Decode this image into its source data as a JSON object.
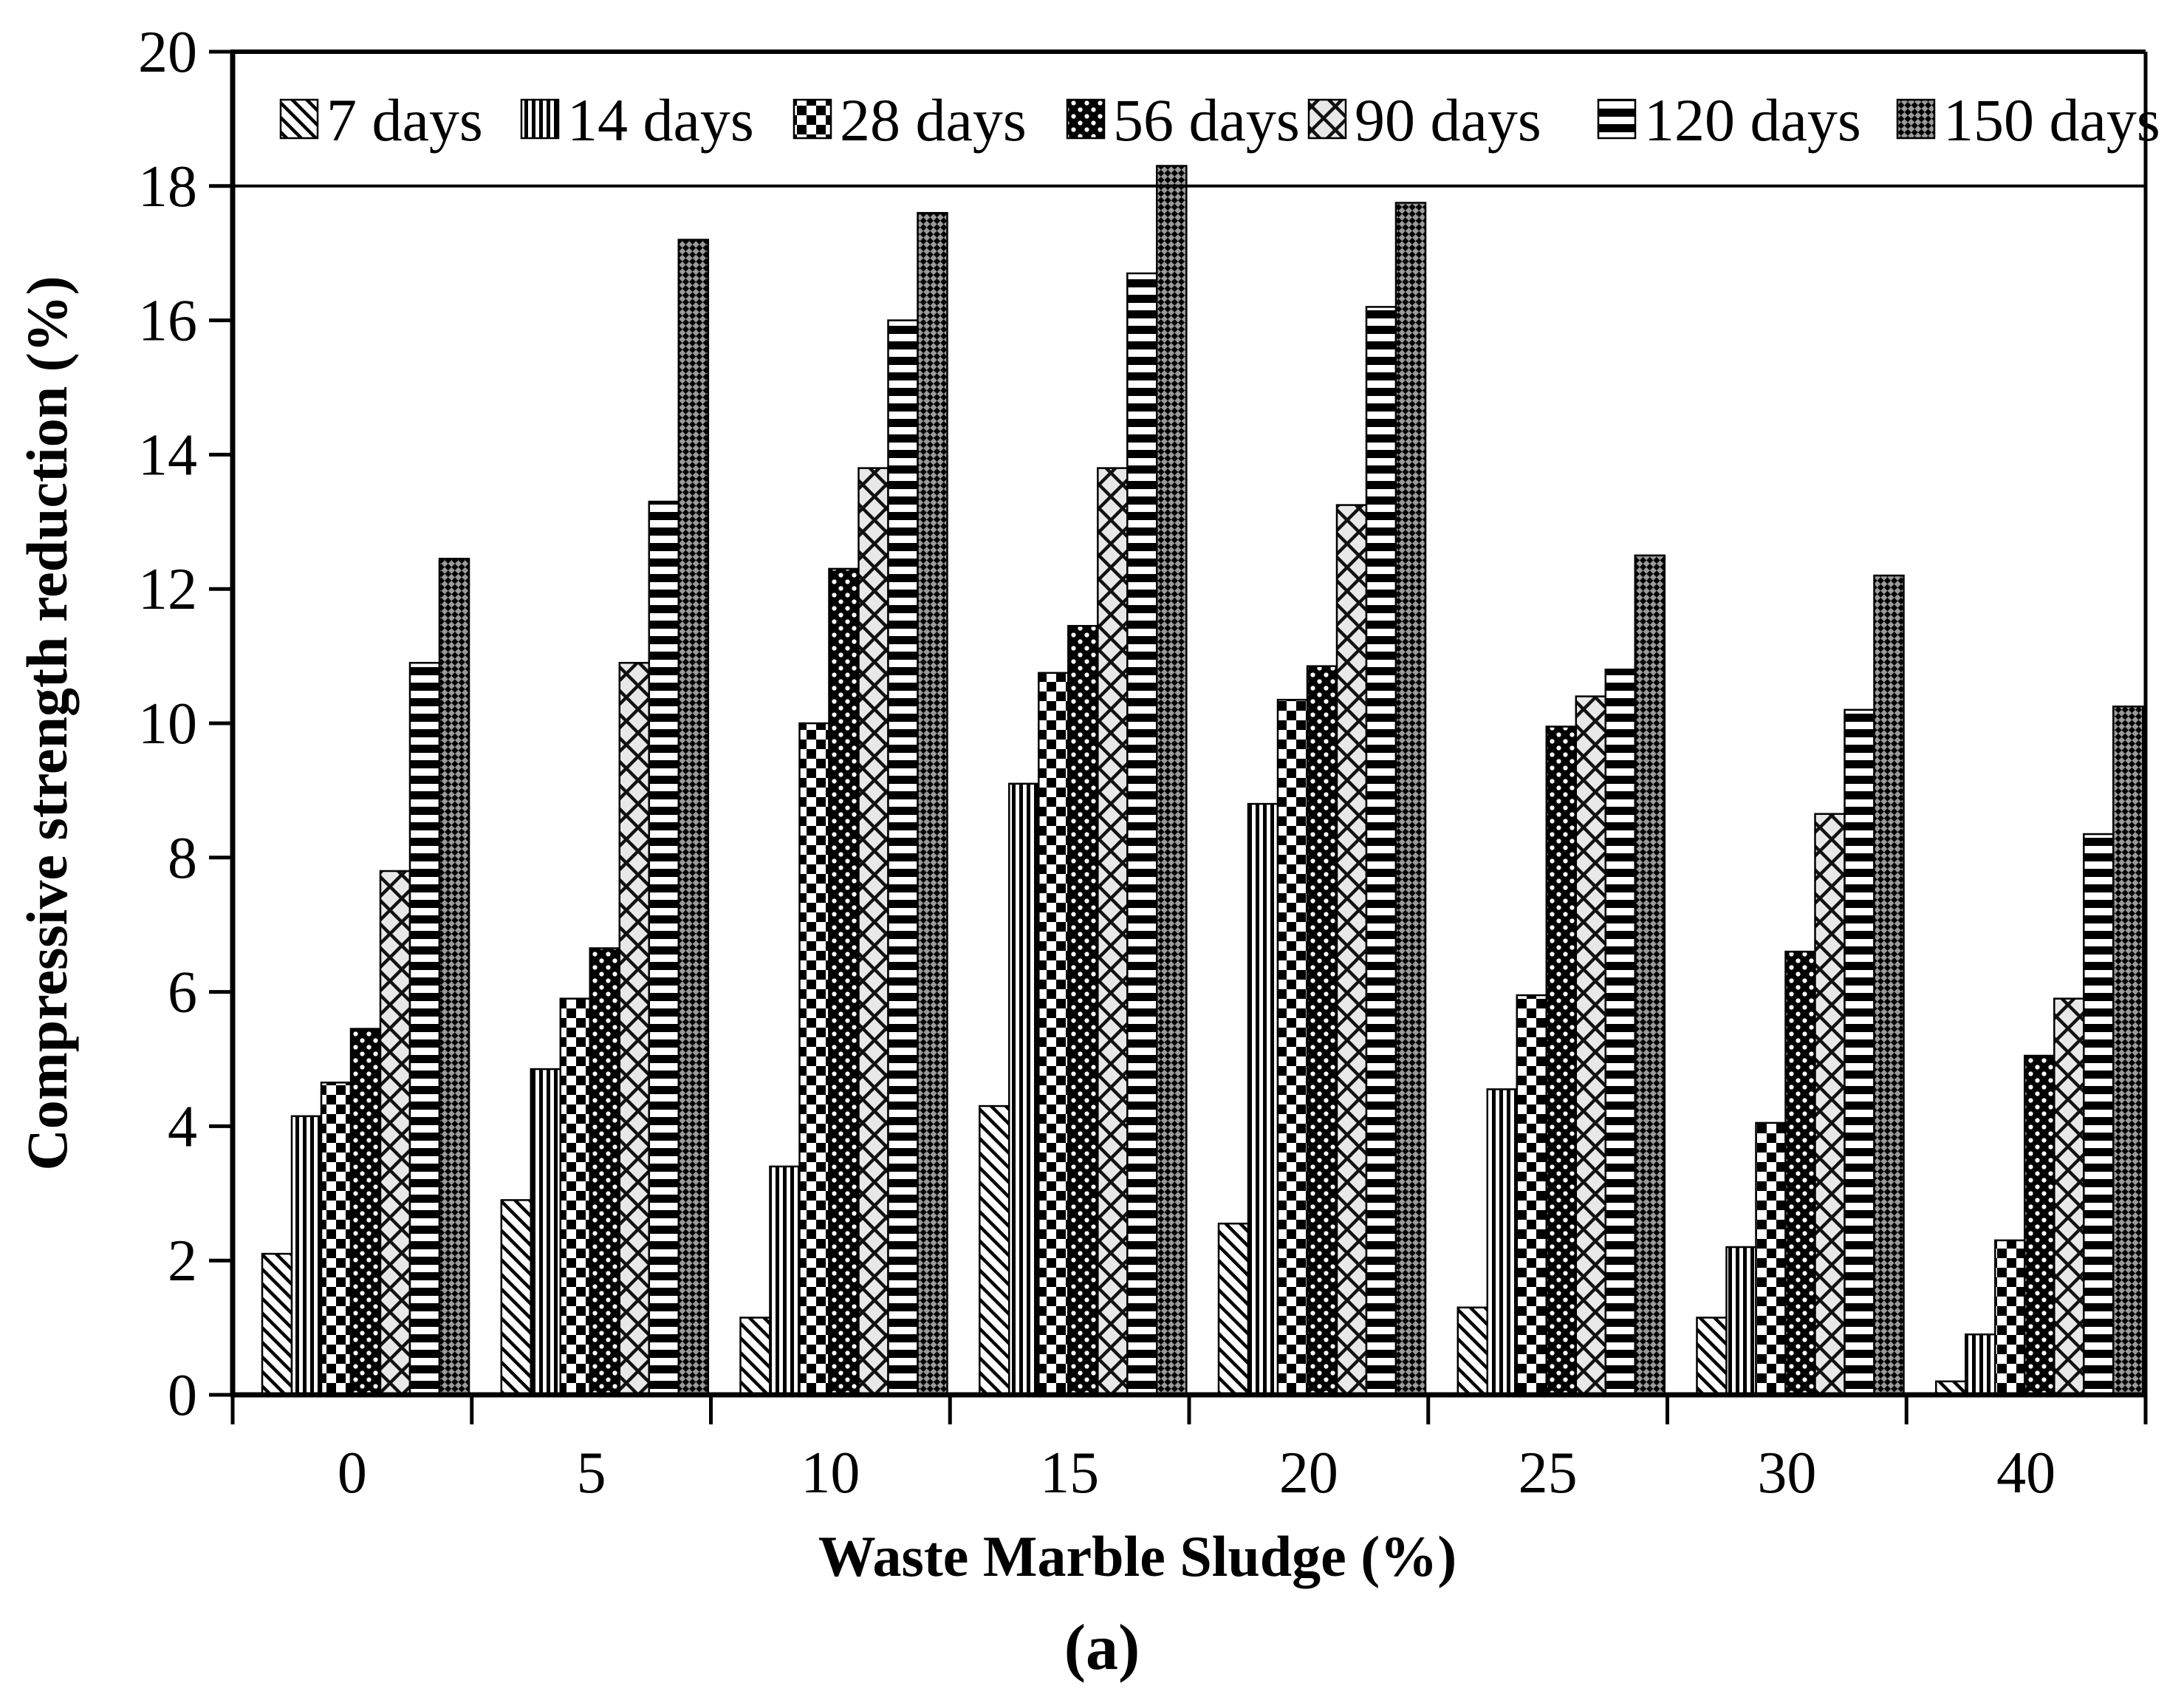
{
  "chart_data": {
    "type": "bar",
    "title": "",
    "xlabel": "Waste Marble Sludge (%)",
    "ylabel": "Compressive strength reduction (%)",
    "caption": "(a)",
    "categories": [
      "0",
      "5",
      "10",
      "15",
      "20",
      "25",
      "30",
      "40"
    ],
    "series": [
      {
        "name": "7 days",
        "pattern": "diagonal-hatch",
        "values": [
          2.1,
          2.9,
          1.15,
          4.3,
          2.55,
          1.3,
          1.15,
          0.2
        ]
      },
      {
        "name": "14 days",
        "pattern": "vertical-stripes",
        "values": [
          4.15,
          4.85,
          3.4,
          9.1,
          8.8,
          4.55,
          2.2,
          0.9
        ]
      },
      {
        "name": "28 days",
        "pattern": "checkerboard",
        "values": [
          4.65,
          5.9,
          10.0,
          10.75,
          10.35,
          5.95,
          4.05,
          2.3
        ]
      },
      {
        "name": "56 days",
        "pattern": "white-dots-on-black",
        "values": [
          5.45,
          6.65,
          12.3,
          11.45,
          10.85,
          9.95,
          6.6,
          5.05
        ]
      },
      {
        "name": "90 days",
        "pattern": "light-crosshatch",
        "values": [
          7.8,
          10.9,
          13.8,
          13.8,
          13.25,
          10.4,
          8.65,
          5.9
        ]
      },
      {
        "name": "120 days",
        "pattern": "horizontal-stripes",
        "values": [
          10.9,
          13.3,
          16.0,
          16.7,
          16.2,
          10.8,
          10.2,
          8.35
        ]
      },
      {
        "name": "150 days",
        "pattern": "dark-diamond-weave",
        "values": [
          12.45,
          17.2,
          17.6,
          18.3,
          17.75,
          12.5,
          12.2,
          10.25
        ]
      }
    ],
    "ylim": [
      0,
      20
    ],
    "ytick_step": 2,
    "ytick_labels": [
      "0",
      "2",
      "4",
      "6",
      "8",
      "10",
      "12",
      "14",
      "16",
      "18",
      "20"
    ],
    "legend_position": "top",
    "gridline_y": 18,
    "grid": "single-horizontal-line-at-18",
    "colors": {
      "foreground": "#000000",
      "background": "#ffffff",
      "crosshatch_bg": "#e8e8e8",
      "weave_bg": "#9a9a9a"
    }
  }
}
